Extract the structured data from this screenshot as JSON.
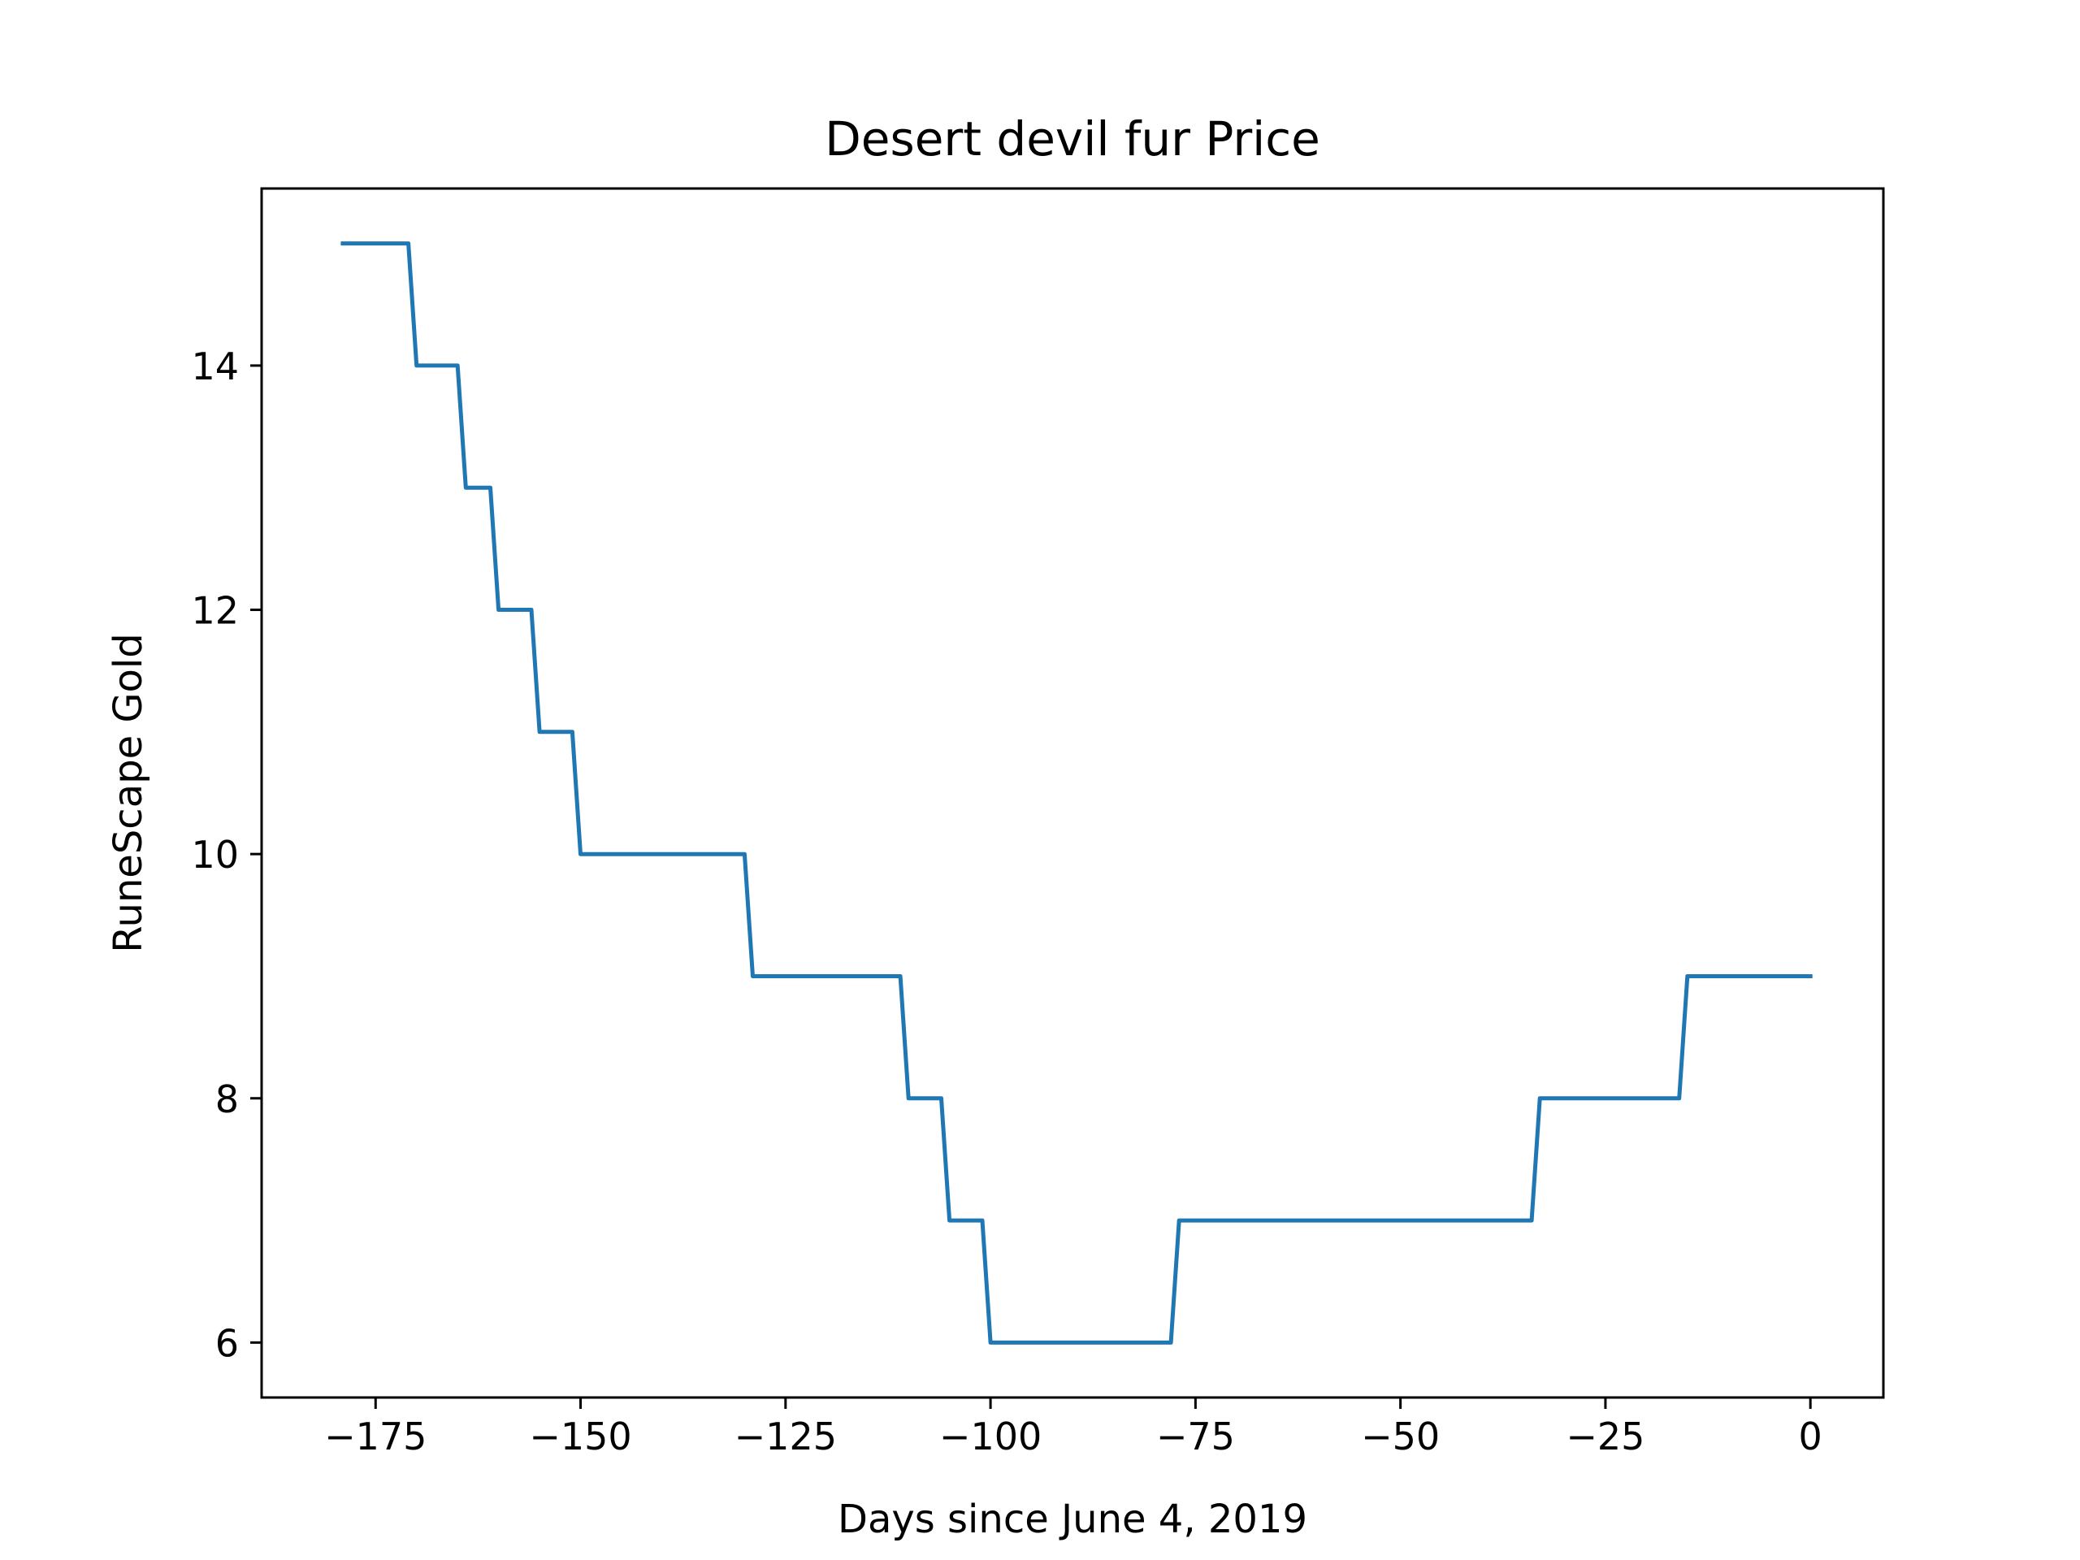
{
  "chart_data": {
    "type": "line",
    "title": "Desert devil fur Price",
    "xlabel": "Days since June 4, 2019",
    "ylabel": "RuneScape Gold",
    "xlim": [
      -188.9,
      8.9
    ],
    "ylim": [
      5.55,
      15.45
    ],
    "xticks": [
      -175,
      -150,
      -125,
      -100,
      -75,
      -50,
      -25,
      0
    ],
    "xtick_labels": [
      "−175",
      "−150",
      "−125",
      "−100",
      "−75",
      "−50",
      "−25",
      "0"
    ],
    "yticks": [
      6,
      8,
      10,
      12,
      14
    ],
    "ytick_labels": [
      "6",
      "8",
      "10",
      "12",
      "14"
    ],
    "grid": false,
    "legend": false,
    "series": [
      {
        "color": "#1f77b4",
        "x": [
          -179,
          -171,
          -170,
          -165,
          -164,
          -161,
          -160,
          -156,
          -155,
          -151,
          -150,
          -130,
          -129,
          -111,
          -110,
          -106,
          -105,
          -101,
          -100,
          -78,
          -77,
          -34,
          -33,
          -16,
          -15,
          0
        ],
        "values": [
          15,
          15,
          14,
          14,
          13,
          13,
          12,
          12,
          11,
          11,
          10,
          10,
          9,
          9,
          8,
          8,
          7,
          7,
          6,
          6,
          7,
          7,
          8,
          8,
          9,
          9
        ]
      }
    ]
  }
}
